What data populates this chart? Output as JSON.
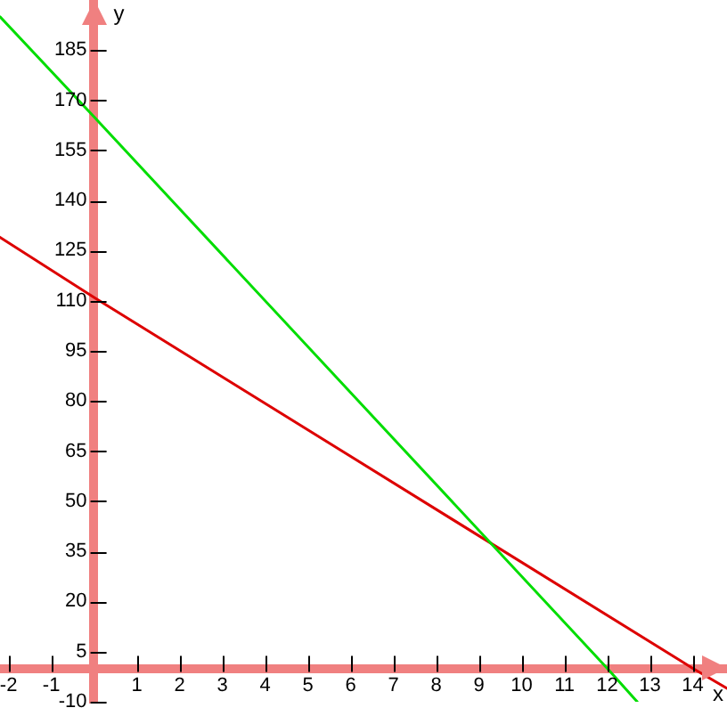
{
  "chart_data": {
    "type": "line",
    "xlabel": "x",
    "ylabel": "y",
    "xlim": [
      -2.2,
      14.8
    ],
    "ylim": [
      -10,
      200
    ],
    "xticks": [
      -2,
      -1,
      1,
      2,
      3,
      4,
      5,
      6,
      7,
      8,
      9,
      10,
      11,
      12,
      13,
      14
    ],
    "yticks": [
      -10,
      5,
      20,
      35,
      50,
      65,
      80,
      95,
      110,
      125,
      140,
      155,
      170,
      185
    ],
    "series": [
      {
        "color": "#00dd00",
        "x": [
          -2.2,
          0,
          12,
          12.7
        ],
        "values": [
          195,
          165,
          0,
          -10
        ]
      },
      {
        "color": "#dd0000",
        "x": [
          -2.2,
          0,
          14,
          14.8
        ],
        "values": [
          129,
          111,
          0,
          -6
        ]
      }
    ]
  }
}
